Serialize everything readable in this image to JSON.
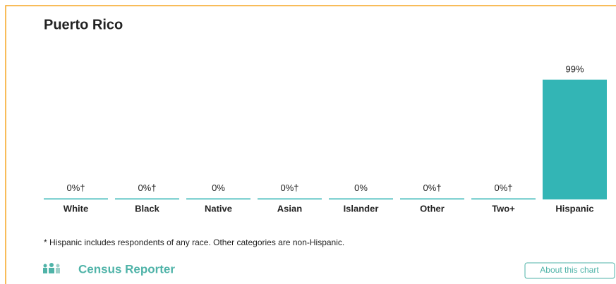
{
  "chart_data": {
    "type": "bar",
    "title": "Puerto Rico",
    "categories": [
      "White",
      "Black",
      "Native",
      "Asian",
      "Islander",
      "Other",
      "Two+",
      "Hispanic"
    ],
    "values": [
      0,
      0,
      0,
      0,
      0,
      0,
      0,
      99
    ],
    "value_labels": [
      "0%†",
      "0%†",
      "0%",
      "0%†",
      "0%",
      "0%†",
      "0%†",
      "99%"
    ],
    "color": "#33b5b5",
    "note": "* Hispanic includes respondents of any race. Other categories are non-Hispanic.",
    "brand": "Census Reporter",
    "button": "About this chart"
  }
}
